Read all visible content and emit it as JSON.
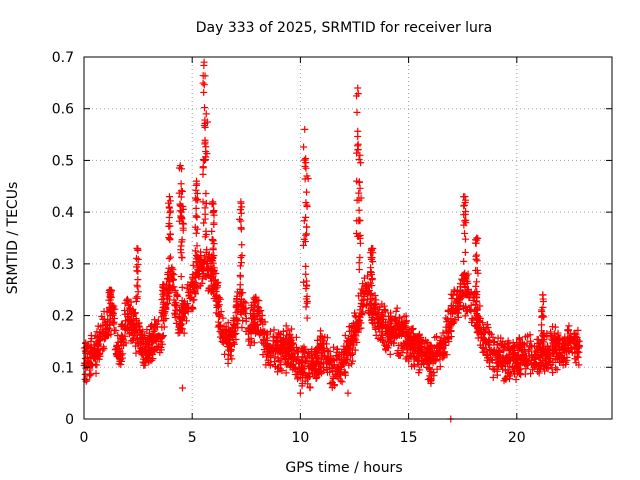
{
  "chart_data": {
    "type": "scatter",
    "title": "Day 333 of 2025, SRMTID for receiver lura",
    "xlabel": "GPS time / hours",
    "ylabel": "SRMTID / TECUs",
    "xlim": [
      0,
      24.4
    ],
    "ylim": [
      0,
      0.7
    ],
    "xticks": [
      0,
      5,
      10,
      15,
      20
    ],
    "xtick_labels": [
      "0",
      "5",
      "10",
      "15",
      "20"
    ],
    "yticks": [
      0,
      0.1,
      0.2,
      0.3,
      0.4,
      0.5,
      0.6,
      0.7
    ],
    "ytick_labels": [
      "0",
      "0.1",
      "0.2",
      "0.3",
      "0.4",
      "0.5",
      "0.6",
      "0.7"
    ],
    "grid": true,
    "marker": "+",
    "series": [
      {
        "name": "SRMTID",
        "color": "#ff0000",
        "profile_hours": [
          0.0,
          0.5,
          1.0,
          1.3,
          1.6,
          2.0,
          2.4,
          2.8,
          3.2,
          3.6,
          4.0,
          4.4,
          4.8,
          5.2,
          5.6,
          6.0,
          6.4,
          6.8,
          7.2,
          7.6,
          8.0,
          8.5,
          9.0,
          9.5,
          10.0,
          10.5,
          11.0,
          11.5,
          12.0,
          12.5,
          13.0,
          13.5,
          14.0,
          14.5,
          15.0,
          15.5,
          16.0,
          16.5,
          17.0,
          17.5,
          18.0,
          18.5,
          19.0,
          19.5,
          20.0,
          20.5,
          21.0,
          21.5,
          22.0,
          22.5,
          22.9
        ],
        "profile_values": [
          0.11,
          0.12,
          0.18,
          0.21,
          0.12,
          0.2,
          0.17,
          0.13,
          0.15,
          0.17,
          0.28,
          0.18,
          0.22,
          0.28,
          0.3,
          0.27,
          0.17,
          0.14,
          0.23,
          0.17,
          0.2,
          0.13,
          0.13,
          0.14,
          0.1,
          0.1,
          0.13,
          0.1,
          0.11,
          0.16,
          0.25,
          0.2,
          0.17,
          0.17,
          0.15,
          0.13,
          0.11,
          0.13,
          0.2,
          0.25,
          0.22,
          0.15,
          0.12,
          0.11,
          0.12,
          0.12,
          0.12,
          0.13,
          0.14,
          0.14,
          0.14
        ],
        "spread": 0.03,
        "spikes": [
          {
            "hour": 1.2,
            "peak": 0.25
          },
          {
            "hour": 2.45,
            "peak": 0.33
          },
          {
            "hour": 3.65,
            "peak": 0.26
          },
          {
            "hour": 3.95,
            "peak": 0.43
          },
          {
            "hour": 4.45,
            "peak": 0.49
          },
          {
            "hour": 4.55,
            "peak": 0.44
          },
          {
            "hour": 5.2,
            "peak": 0.46
          },
          {
            "hour": 5.55,
            "peak": 0.69
          },
          {
            "hour": 5.65,
            "peak": 0.59
          },
          {
            "hour": 5.95,
            "peak": 0.42
          },
          {
            "hour": 7.25,
            "peak": 0.42
          },
          {
            "hour": 10.2,
            "peak": 0.56
          },
          {
            "hour": 10.3,
            "peak": 0.47
          },
          {
            "hour": 12.65,
            "peak": 0.64
          },
          {
            "hour": 12.75,
            "peak": 0.51
          },
          {
            "hour": 13.3,
            "peak": 0.33
          },
          {
            "hour": 17.6,
            "peak": 0.43
          },
          {
            "hour": 18.15,
            "peak": 0.35
          },
          {
            "hour": 21.2,
            "peak": 0.24
          }
        ],
        "outliers": [
          {
            "x": 16.95,
            "y": 0.0
          },
          {
            "x": 4.55,
            "y": 0.06
          },
          {
            "x": 10.0,
            "y": 0.05
          },
          {
            "x": 12.2,
            "y": 0.05
          }
        ]
      }
    ]
  }
}
